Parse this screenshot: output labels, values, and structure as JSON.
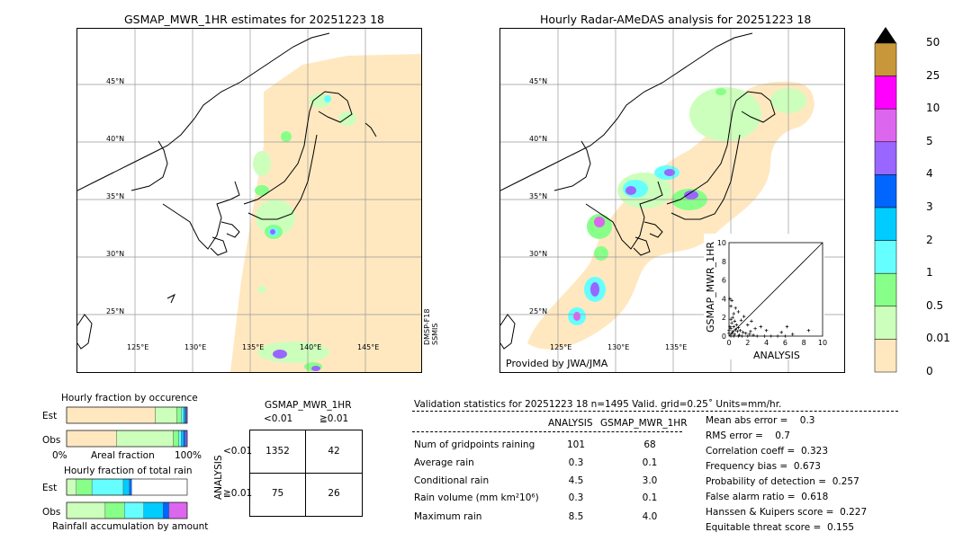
{
  "left_map": {
    "title": "GSMAP_MWR_1HR estimates for 20251223 18",
    "lat_labels": [
      "45°N",
      "40°N",
      "35°N",
      "30°N",
      "25°N"
    ],
    "lon_labels": [
      "125°E",
      "130°E",
      "135°E",
      "140°E",
      "145°E"
    ],
    "satellite_label": "DMSP-F18\nSSMIS"
  },
  "right_map": {
    "title": "Hourly Radar-AMeDAS analysis for 20251223 18",
    "lat_labels": [
      "45°N",
      "40°N",
      "35°N",
      "30°N",
      "25°N"
    ],
    "lon_labels": [
      "125°E",
      "130°E",
      "135°E"
    ],
    "credit": "Provided by JWA/JMA"
  },
  "scatter": {
    "ylabel": "GSMAP_MWR_1HR",
    "xlabel": "ANALYSIS",
    "ticks": [
      "0",
      "2",
      "4",
      "6",
      "8",
      "10"
    ]
  },
  "colorbar": {
    "labels": [
      "50",
      "25",
      "10",
      "5",
      "4",
      "3",
      "2",
      "1",
      "0.5",
      "0.01",
      "0"
    ],
    "colors": {
      "c50": "#c8973a",
      "c25": "#ff00ff",
      "c10": "#dd66ee",
      "c5": "#9966ff",
      "c4": "#0066ff",
      "c3": "#00ccff",
      "c2": "#66ffff",
      "c1": "#88ff88",
      "c05": "#ccffbb",
      "c001": "#ffe8c0"
    }
  },
  "occurrence": {
    "title": "Hourly fraction by occurence",
    "row_labels": [
      "Est",
      "Obs"
    ],
    "axis_left": "0%",
    "axis_mid": "Areal fraction",
    "axis_right": "100%"
  },
  "total_rain": {
    "title": "Hourly fraction of total rain",
    "row_labels": [
      "Est",
      "Obs"
    ],
    "axis_label": "Rainfall accumulation by amount"
  },
  "contingency": {
    "title": "GSMAP_MWR_1HR",
    "col_headers": [
      "<0.01",
      "≧0.01"
    ],
    "row_axis": "ANALYSIS",
    "row_headers": [
      "<0.01",
      "≧0.01"
    ],
    "cells": [
      [
        "1352",
        "42"
      ],
      [
        "75",
        "26"
      ]
    ]
  },
  "validation": {
    "header": "Validation statistics for 20251223 18  n=1495 Valid. grid=0.25˚ Units=mm/hr.",
    "col_analysis": "ANALYSIS",
    "col_gsmap": "GSMAP_MWR_1HR",
    "rows": [
      {
        "label": "Num of gridpoints raining",
        "analysis": "101",
        "gsmap": "68"
      },
      {
        "label": "Average rain",
        "analysis": "0.3",
        "gsmap": "0.1"
      },
      {
        "label": "Conditional rain",
        "analysis": "4.5",
        "gsmap": "3.0"
      },
      {
        "label": "Rain volume (mm km²10⁶)",
        "analysis": "0.3",
        "gsmap": "0.1"
      },
      {
        "label": "Maximum rain",
        "analysis": "8.5",
        "gsmap": "4.0"
      }
    ],
    "scores": [
      "Mean abs error =    0.3",
      "RMS error =    0.7",
      "Correlation coeff =  0.323",
      "Frequency bias =  0.673",
      "Probability of detection =  0.257",
      "False alarm ratio =  0.618",
      "Hanssen & Kuipers score =  0.227",
      "Equitable threat score =  0.155"
    ]
  },
  "chart_data": [
    {
      "type": "scatter",
      "title": "",
      "xlabel": "ANALYSIS",
      "ylabel": "GSMAP_MWR_1HR",
      "xlim": [
        0,
        10
      ],
      "ylim": [
        0,
        10
      ],
      "points": [
        [
          0.1,
          4.0
        ],
        [
          0.3,
          3.8
        ],
        [
          0.2,
          3.2
        ],
        [
          0.5,
          2.4
        ],
        [
          0.4,
          2.0
        ],
        [
          0.2,
          1.8
        ],
        [
          0.6,
          1.6
        ],
        [
          0.3,
          1.4
        ],
        [
          0.8,
          1.2
        ],
        [
          0.1,
          1.0
        ],
        [
          0.5,
          1.0
        ],
        [
          1.0,
          0.9
        ],
        [
          0.2,
          0.8
        ],
        [
          0.7,
          0.7
        ],
        [
          1.2,
          0.6
        ],
        [
          0.4,
          0.5
        ],
        [
          0.9,
          0.5
        ],
        [
          1.5,
          0.4
        ],
        [
          0.3,
          0.3
        ],
        [
          1.8,
          0.3
        ],
        [
          0.6,
          0.2
        ],
        [
          2.2,
          0.2
        ],
        [
          1.1,
          0.1
        ],
        [
          2.6,
          0.1
        ],
        [
          0.2,
          0.0
        ],
        [
          0.5,
          0.0
        ],
        [
          1.0,
          0.0
        ],
        [
          1.4,
          0.0
        ],
        [
          2.0,
          0.0
        ],
        [
          3.0,
          0.0
        ],
        [
          3.8,
          0.0
        ],
        [
          4.5,
          0.0
        ],
        [
          5.2,
          0.0
        ],
        [
          6.0,
          0.0
        ],
        [
          0.0,
          0.6
        ],
        [
          0.0,
          0.3
        ],
        [
          2.4,
          1.6
        ],
        [
          2.0,
          1.2
        ],
        [
          2.8,
          0.8
        ],
        [
          3.4,
          1.0
        ],
        [
          1.6,
          2.1
        ],
        [
          1.3,
          1.7
        ],
        [
          4.0,
          0.6
        ],
        [
          6.2,
          1.0
        ],
        [
          5.6,
          0.4
        ],
        [
          8.5,
          0.6
        ],
        [
          6.8,
          0.2
        ],
        [
          1.0,
          2.6
        ],
        [
          0.7,
          3.0
        ],
        [
          2.3,
          0.5
        ]
      ]
    },
    {
      "type": "bar",
      "title": "Hourly fraction by occurence",
      "categories": [
        "Est",
        "Obs"
      ],
      "series": [
        {
          "name": "0",
          "values": [
            0.735,
            0.415
          ]
        },
        {
          "name": "0.01",
          "values": [
            0.18,
            0.47
          ]
        },
        {
          "name": "0.5",
          "values": [
            0.035,
            0.045
          ]
        },
        {
          "name": "1",
          "values": [
            0.02,
            0.02
          ]
        },
        {
          "name": "2",
          "values": [
            0.012,
            0.02
          ]
        },
        {
          "name": "3",
          "values": [
            0.008,
            0.015
          ]
        },
        {
          "name": "4",
          "values": [
            0.01,
            0.015
          ]
        }
      ]
    },
    {
      "type": "bar",
      "title": "Hourly fraction of total rain",
      "categories": [
        "Est",
        "Obs"
      ],
      "series": [
        {
          "name": "0.01",
          "values": [
            0.08,
            0.32
          ]
        },
        {
          "name": "0.5",
          "values": [
            0.13,
            0.16
          ]
        },
        {
          "name": "1",
          "values": [
            0.26,
            0.16
          ]
        },
        {
          "name": "2",
          "values": [
            0.05,
            0.16
          ]
        },
        {
          "name": "3",
          "values": [
            0.02,
            0.05
          ]
        },
        {
          "name": "4",
          "values": [
            0.0,
            0.0
          ]
        },
        {
          "name": "5",
          "values": [
            0.0,
            0.0
          ]
        },
        {
          "name": "10",
          "values": [
            0.0,
            0.15
          ]
        }
      ]
    }
  ]
}
